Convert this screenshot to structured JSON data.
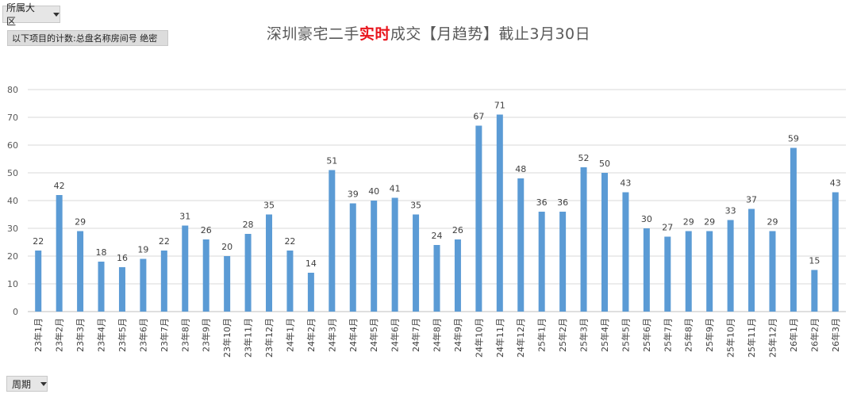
{
  "filters": {
    "region_label": "所属大区",
    "count_label": "以下项目的计数:总盘名称房间号 绝密",
    "period_label": "周期"
  },
  "title": {
    "part1": "深圳豪宅二手",
    "highlight": "实时",
    "part2": "成交【月趋势】截止3月30日"
  },
  "colors": {
    "bar": "#5b9bd5",
    "highlight": "#e8141c",
    "grid": "#d9d9d9"
  },
  "chart_data": {
    "type": "bar",
    "title": "深圳豪宅二手实时成交【月趋势】截止3月30日",
    "categories": [
      "23年1月",
      "23年2月",
      "23年3月",
      "23年4月",
      "23年5月",
      "23年6月",
      "23年7月",
      "23年8月",
      "23年9月",
      "23年10月",
      "23年11月",
      "23年12月",
      "24年1月",
      "24年2月",
      "24年3月",
      "24年4月",
      "24年5月",
      "24年6月",
      "24年7月",
      "24年8月",
      "24年9月",
      "24年10月",
      "24年11月",
      "24年12月",
      "25年1月",
      "25年2月",
      "25年3月",
      "25年4月",
      "25年5月",
      "25年6月",
      "25年7月",
      "25年8月",
      "25年9月",
      "25年10月",
      "25年11月",
      "25年12月",
      "26年1月",
      "26年2月",
      "26年3月"
    ],
    "values": [
      22,
      42,
      29,
      18,
      16,
      19,
      22,
      31,
      26,
      20,
      28,
      35,
      22,
      14,
      51,
      39,
      40,
      41,
      35,
      24,
      26,
      67,
      71,
      48,
      36,
      36,
      52,
      50,
      43,
      30,
      27,
      29,
      29,
      33,
      37,
      29,
      59,
      15,
      43
    ],
    "yticks": [
      0,
      10,
      20,
      30,
      40,
      50,
      60,
      70,
      80
    ],
    "ylim": [
      0,
      80
    ],
    "grid": true,
    "legend": "none"
  }
}
